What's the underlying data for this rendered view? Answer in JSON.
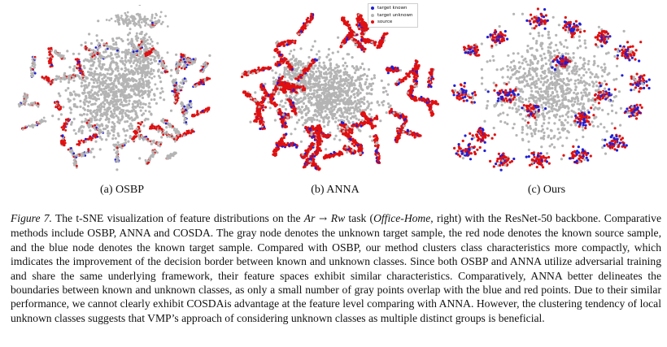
{
  "legend": {
    "items": [
      {
        "label": "target known",
        "color": "#1f1fd6"
      },
      {
        "label": "target unknown",
        "color": "#b4b4b4"
      },
      {
        "label": "source",
        "color": "#e01010"
      }
    ]
  },
  "panels": [
    {
      "id": "osbp",
      "caption": "(a) OSBP"
    },
    {
      "id": "anna",
      "caption": "(b) ANNA"
    },
    {
      "id": "ours",
      "caption": "(c) Ours"
    }
  ],
  "colors": {
    "known": "#1f1fd6",
    "unknown": "#b4b4b4",
    "source": "#e01010"
  },
  "caption": {
    "label": "Figure 7.",
    "part1": " The t-SNE visualization of feature distributions on the ",
    "math_from": "Ar",
    "arrow": " → ",
    "math_to": "Rw",
    "part2": " task (",
    "dataset": "Office-Home",
    "part3": ", right) with the ResNet-50 backbone. Comparative methods include OSBP, ANNA and COSDA. The gray node denotes the unknown target sample, the red node denotes the known source sample, and the blue node denotes the known target sample. Compared with OSBP, our method clusters class characteristics more compactly, which imdicates the improvement of the decision border between known and unknown classes. Since both OSBP and ANNA utilize adversarial training and share the same underlying framework, their feature spaces exhibit similar characteristics. Comparatively, ANNA better delineates the boundaries between known and unknown classes, as only a small number of gray points overlap with the blue and red points. Due to their similar performance, we cannot clearly exhibit COSDAis advantage at the feature level comparing with ANNA. However, the clustering tendency of local unknown classes suggests that VMP’s approach of considering unknown classes as multiple distinct groups is beneficial."
  }
}
